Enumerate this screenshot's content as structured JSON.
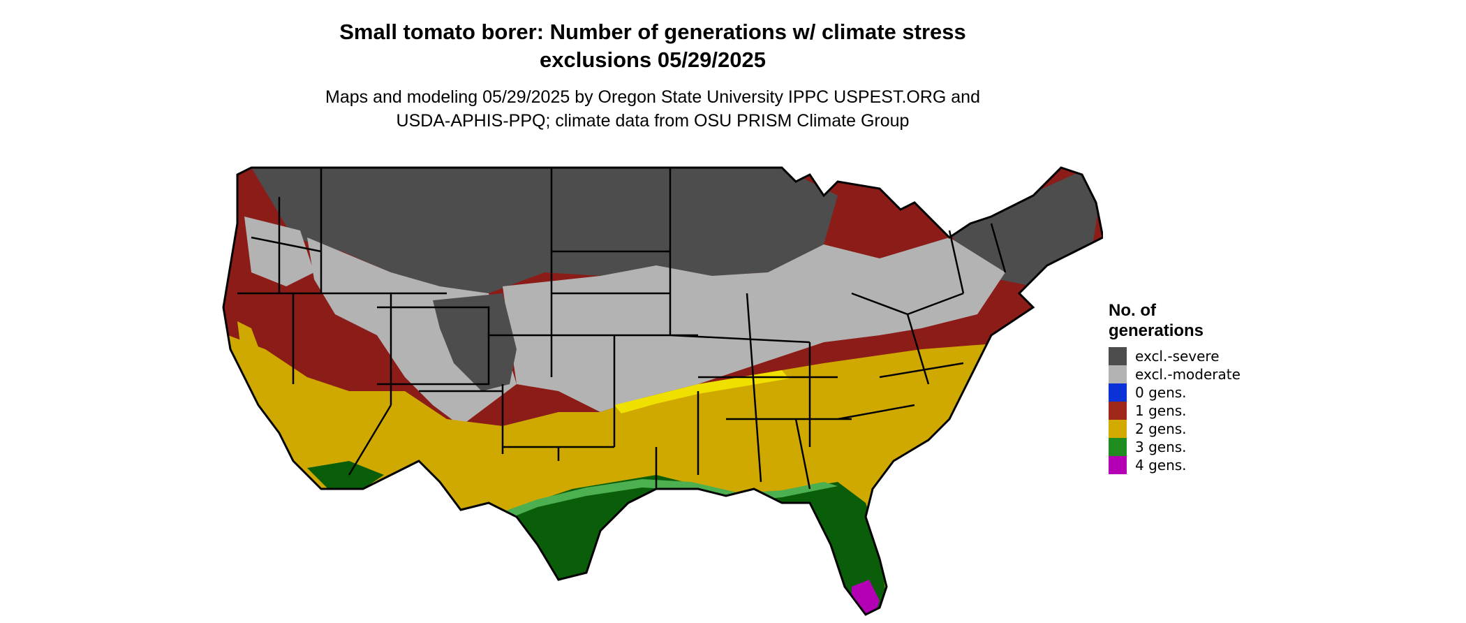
{
  "title_line1": "Small tomato borer: Number of generations w/ climate stress",
  "title_line2": "exclusions 05/29/2025",
  "subtitle_line1": "Maps and modeling 05/29/2025 by Oregon State University IPPC USPEST.ORG and",
  "subtitle_line2": "USDA-APHIS-PPQ; climate data from OSU PRISM Climate Group",
  "legend": {
    "title_line1": "No. of",
    "title_line2": "generations",
    "items": [
      {
        "label": "excl.-severe",
        "color": "#4d4d4d"
      },
      {
        "label": "excl.-moderate",
        "color": "#b3b3b3"
      },
      {
        "label": "0 gens.",
        "color": "#0a32d6"
      },
      {
        "label": "1 gens.",
        "color": "#a0281a"
      },
      {
        "label": "2 gens.",
        "color": "#d2aa00"
      },
      {
        "label": "3 gens.",
        "color": "#1e8c1e"
      },
      {
        "label": "4 gens.",
        "color": "#b400b4"
      }
    ]
  },
  "map_colors": {
    "severe": "#4d4d4d",
    "moderate": "#b3b3b3",
    "gen1": "#8c1c17",
    "gen2": "#cfa900",
    "gen2_light": "#f0e000",
    "gen3": "#0a5e0a",
    "gen3_light": "#4caf50",
    "gen4": "#b400b4",
    "border": "#000000"
  }
}
